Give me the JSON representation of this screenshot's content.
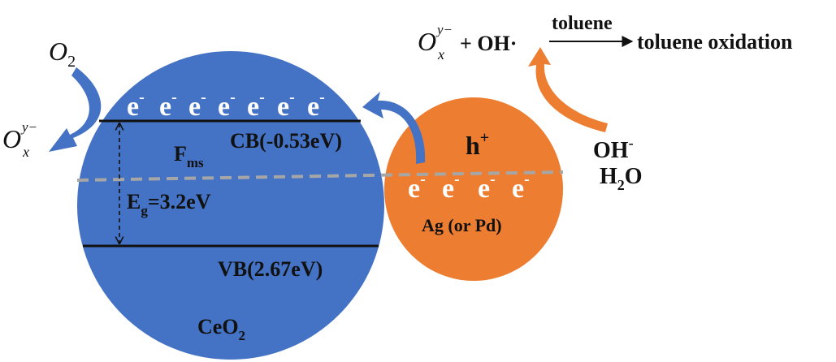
{
  "colors": {
    "ceo2_fill": "#4472C4",
    "ag_fill": "#ED7D31",
    "blue_arrow": "#4472C4",
    "orange_arrow": "#ED7D31",
    "dashed_line": "#A6A6A6",
    "band_line": "#111111"
  },
  "ceo2": {
    "electrons": [
      "e",
      "e",
      "e",
      "e",
      "e",
      "e",
      "e"
    ],
    "electron_sup": "-",
    "cb_label": "CB(-0.53eV)",
    "vb_label": "VB(2.67eV)",
    "fms_main": "F",
    "fms_sub": "ms",
    "eg_main": "E",
    "eg_sub": "g",
    "eg_value": "=3.2eV",
    "name_main": "CeO",
    "name_sub": "2"
  },
  "ag": {
    "hole_main": "h",
    "hole_sup": "+",
    "electrons": [
      "e",
      "e",
      "e",
      "e"
    ],
    "electron_sup": "-",
    "name": "Ag (or Pd)"
  },
  "left_reaction": {
    "o2_main": "O",
    "o2_sub": "2",
    "ox_main": "O",
    "ox_sup": "y−",
    "ox_sub": "x"
  },
  "right_reaction": {
    "oh_main": "OH",
    "oh_sup": "-",
    "h2o_h": "H",
    "h2o_sub": "2",
    "h2o_o": "O"
  },
  "top_reaction": {
    "ox_main": "O",
    "ox_sup": "y−",
    "ox_sub": "x",
    "plus_oh": "+ OH·",
    "arrow_label": "toluene",
    "product": "toluene oxidation"
  }
}
